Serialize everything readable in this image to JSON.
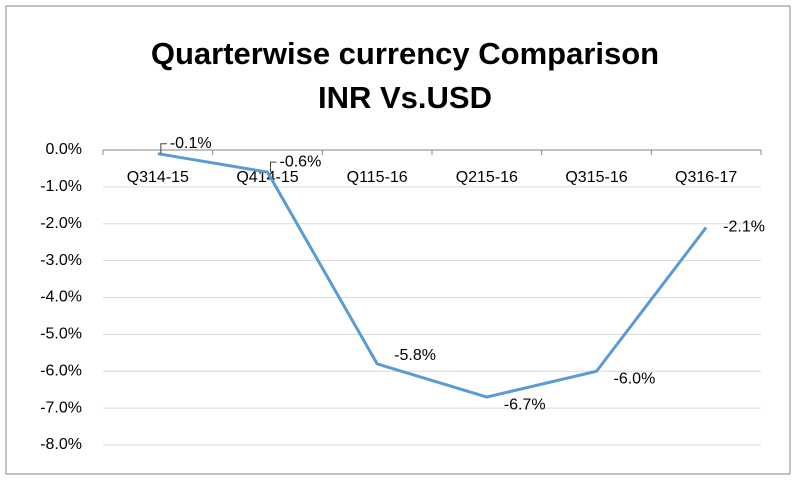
{
  "chart_data": {
    "type": "line",
    "title": [
      "Quarterwise currency Comparison",
      "INR Vs.USD"
    ],
    "categories": [
      "Q314-15",
      "Q414-15",
      "Q115-16",
      "Q215-16",
      "Q315-16",
      "Q316-17"
    ],
    "series": [
      {
        "name": "INR Vs.USD",
        "color": "#5b9bd5",
        "values": [
          -0.1,
          -0.6,
          -5.8,
          -6.7,
          -6.0,
          -2.1
        ],
        "value_labels": [
          "-0.1%",
          "-0.6%",
          "-5.8%",
          "-6.7%",
          "-6.0%",
          "-2.1%"
        ]
      }
    ],
    "ylim": [
      -8,
      0
    ],
    "yticks": [
      {
        "value": 0,
        "label": "0.0%"
      },
      {
        "value": -1,
        "label": "-1.0%"
      },
      {
        "value": -2,
        "label": "-2.0%"
      },
      {
        "value": -3,
        "label": "-3.0%"
      },
      {
        "value": -4,
        "label": "-4.0%"
      },
      {
        "value": -5,
        "label": "-5.0%"
      },
      {
        "value": -6,
        "label": "-6.0%"
      },
      {
        "value": -7,
        "label": "-7.0%"
      },
      {
        "value": -8,
        "label": "-8.0%"
      }
    ],
    "grid": true
  }
}
